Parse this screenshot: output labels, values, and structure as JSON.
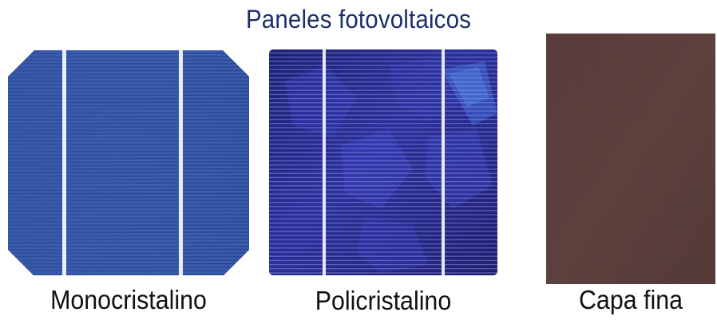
{
  "title": "Paneles fotovoltaicos",
  "panels": [
    {
      "label": "Monocristalino",
      "color": "#3b5aa8",
      "icon": "monocrystalline-cell"
    },
    {
      "label": "Policristalino",
      "color": "#24288f",
      "icon": "polycrystalline-cell"
    },
    {
      "label": "Capa fina",
      "color": "#5a3f3c",
      "icon": "thin-film-cell"
    }
  ]
}
